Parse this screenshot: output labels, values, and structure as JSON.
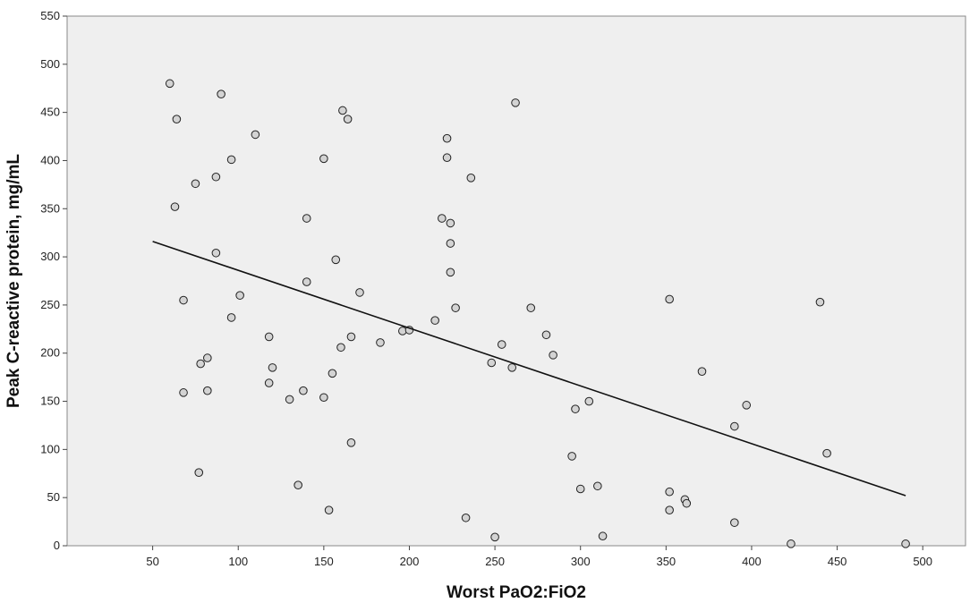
{
  "chart_data": {
    "type": "scatter",
    "xlabel": "Worst PaO2:FiO2",
    "ylabel": "Peak  C-reactive protein, mg/mL",
    "xlim": [
      0,
      525
    ],
    "ylim": [
      0,
      550
    ],
    "xticks": [
      50,
      100,
      150,
      200,
      250,
      300,
      350,
      400,
      450,
      500
    ],
    "yticks": [
      0,
      50,
      100,
      150,
      200,
      250,
      300,
      350,
      400,
      450,
      500,
      550
    ],
    "grid": false,
    "plot_background": "#efefef",
    "point_color": "#d3d3d3",
    "line_color": "#111111",
    "fit_line": {
      "x": [
        50,
        490
      ],
      "y": [
        316,
        52
      ]
    },
    "points": [
      [
        60,
        480
      ],
      [
        64,
        443
      ],
      [
        90,
        469
      ],
      [
        110,
        427
      ],
      [
        96,
        401
      ],
      [
        87,
        383
      ],
      [
        75,
        376
      ],
      [
        63,
        352
      ],
      [
        87,
        304
      ],
      [
        68,
        255
      ],
      [
        101,
        260
      ],
      [
        96,
        237
      ],
      [
        118,
        217
      ],
      [
        120,
        185
      ],
      [
        78,
        189
      ],
      [
        82,
        195
      ],
      [
        68,
        159
      ],
      [
        82,
        161
      ],
      [
        118,
        169
      ],
      [
        77,
        76
      ],
      [
        130,
        152
      ],
      [
        138,
        161
      ],
      [
        135,
        63
      ],
      [
        150,
        154
      ],
      [
        155,
        179
      ],
      [
        153,
        37
      ],
      [
        161,
        452
      ],
      [
        164,
        443
      ],
      [
        150,
        402
      ],
      [
        140,
        340
      ],
      [
        140,
        274
      ],
      [
        157,
        297
      ],
      [
        171,
        263
      ],
      [
        166,
        217
      ],
      [
        160,
        206
      ],
      [
        183,
        211
      ],
      [
        166,
        107
      ],
      [
        196,
        223
      ],
      [
        200,
        224
      ],
      [
        215,
        234
      ],
      [
        222,
        423
      ],
      [
        222,
        403
      ],
      [
        236,
        382
      ],
      [
        219,
        340
      ],
      [
        224,
        335
      ],
      [
        224,
        314
      ],
      [
        224,
        284
      ],
      [
        227,
        247
      ],
      [
        233,
        29
      ],
      [
        248,
        190
      ],
      [
        254,
        209
      ],
      [
        250,
        9
      ],
      [
        260,
        185
      ],
      [
        262,
        460
      ],
      [
        271,
        247
      ],
      [
        280,
        219
      ],
      [
        284,
        198
      ],
      [
        297,
        142
      ],
      [
        295,
        93
      ],
      [
        305,
        150
      ],
      [
        300,
        59
      ],
      [
        310,
        62
      ],
      [
        313,
        10
      ],
      [
        352,
        256
      ],
      [
        352,
        56
      ],
      [
        352,
        37
      ],
      [
        361,
        48
      ],
      [
        362,
        44
      ],
      [
        371,
        181
      ],
      [
        390,
        124
      ],
      [
        397,
        146
      ],
      [
        390,
        24
      ],
      [
        423,
        2
      ],
      [
        440,
        253
      ],
      [
        444,
        96
      ],
      [
        490,
        2
      ]
    ]
  }
}
